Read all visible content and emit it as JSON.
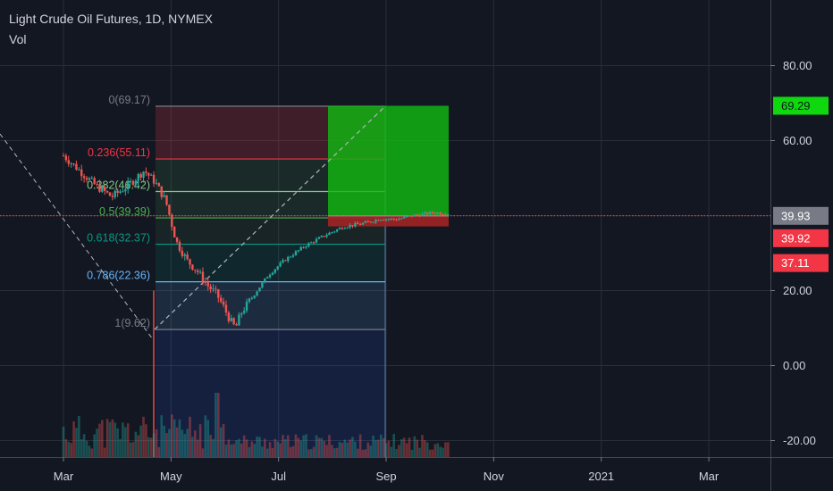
{
  "header": {
    "title": "Light Crude Oil Futures, 1D, NYMEX",
    "indicator": "Vol"
  },
  "colors": {
    "background": "#131722",
    "grid": "#2a2e39",
    "text": "#d1d4dc",
    "bull": "#26a69a",
    "bear": "#ef5350",
    "target_zone": "#11b711",
    "stop_zone": "#a22424",
    "current_line": "#ef5350"
  },
  "chart_data": {
    "type": "candlestick",
    "symbol": "Light Crude Oil Futures",
    "timeframe": "1D",
    "exchange": "NYMEX",
    "x_ticks": [
      "Mar",
      "May",
      "Jul",
      "Sep",
      "Nov",
      "2021",
      "Mar"
    ],
    "y_ticks": [
      80.0,
      60.0,
      20.0,
      0.0,
      -20.0
    ],
    "y_tick_labels": [
      "80.00",
      "60.00",
      "20.00",
      "0.00",
      "-20.00"
    ],
    "ylim": [
      -22,
      100
    ],
    "grid": true,
    "fib_retracement": [
      {
        "label": "0(69.17)",
        "level": 0,
        "price": 69.17,
        "color": "#787b86"
      },
      {
        "label": "0.236(55.11)",
        "level": 0.236,
        "price": 55.11,
        "color": "#f23645"
      },
      {
        "label": "0.382(46.42)",
        "level": 0.382,
        "price": 46.42,
        "color": "#81c784"
      },
      {
        "label": "0.5(39.39)",
        "level": 0.5,
        "price": 39.39,
        "color": "#4caf50"
      },
      {
        "label": "0.618(32.37)",
        "level": 0.618,
        "price": 32.37,
        "color": "#089981"
      },
      {
        "label": "0.786(22.36)",
        "level": 0.786,
        "price": 22.36,
        "color": "#64b5f6"
      },
      {
        "label": "1(9.62)",
        "level": 1,
        "price": 9.62,
        "color": "#787b86"
      }
    ],
    "long_position": {
      "entry": 39.92,
      "target": 69.29,
      "stop": 37.11
    },
    "price_badges": [
      {
        "label": "69.29",
        "value": 69.29,
        "bg": "#0fd80f",
        "fg": "#131722"
      },
      {
        "label": "39.93",
        "value": 39.93,
        "bg": "#787b86",
        "fg": "#ffffff"
      },
      {
        "label": "39.92",
        "value": 39.92,
        "bg": "#f23645",
        "fg": "#ffffff"
      },
      {
        "label": "37.11",
        "value": 37.11,
        "bg": "#f23645",
        "fg": "#ffffff"
      }
    ],
    "current_price": 39.93
  }
}
